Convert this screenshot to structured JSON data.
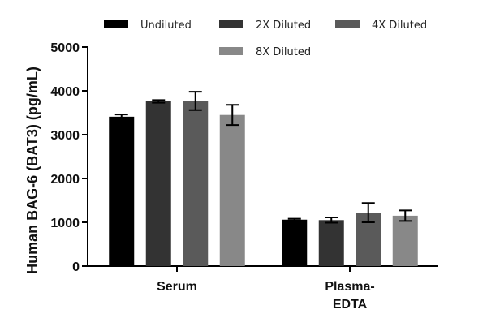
{
  "chart_data": {
    "type": "bar",
    "title": "",
    "xlabel": "",
    "ylabel": "Human BAG-6 (BAT3) (pg/mL)",
    "ylim": [
      0,
      5000
    ],
    "yticks": [
      0,
      1000,
      2000,
      3000,
      4000,
      5000
    ],
    "categories": [
      {
        "lines": [
          "Serum"
        ]
      },
      {
        "lines": [
          "Plasma-",
          "EDTA"
        ]
      }
    ],
    "series": [
      {
        "name": "Undiluted",
        "color": "#000000",
        "values": [
          3410,
          1060
        ],
        "errors": [
          50,
          20
        ]
      },
      {
        "name": "2X Diluted",
        "color": "#333333",
        "values": [
          3760,
          1050
        ],
        "errors": [
          30,
          60
        ]
      },
      {
        "name": "4X Diluted",
        "color": "#5a5a5a",
        "values": [
          3770,
          1220
        ],
        "errors": [
          210,
          220
        ]
      },
      {
        "name": "8X Diluted",
        "color": "#888888",
        "values": [
          3450,
          1150
        ],
        "errors": [
          230,
          120
        ]
      }
    ],
    "legend_position": "top"
  }
}
